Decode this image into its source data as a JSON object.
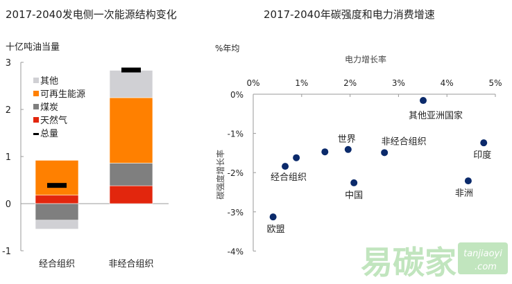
{
  "chart_data": [
    {
      "type": "bar",
      "stacked": true,
      "title": "2017-2040发电侧一次能源结构变化",
      "ylabel": "十亿吨油当量",
      "ylim": [
        -1,
        3
      ],
      "yticks": [
        "3",
        "2",
        "1",
        "0",
        "-1"
      ],
      "ytick_values": [
        3,
        2,
        1,
        0,
        -1
      ],
      "categories": [
        "经合组织",
        "非经合组织"
      ],
      "series": [
        {
          "name": "天然气",
          "color": "#e2260d",
          "values": [
            0.18,
            0.38
          ]
        },
        {
          "name": "煤炭",
          "color": "#7f7f7f",
          "values": [
            -0.35,
            0.48
          ]
        },
        {
          "name": "可再生能源",
          "color": "#ff8000",
          "values": [
            0.74,
            1.39
          ]
        },
        {
          "name": "其他",
          "color": "#d0d0d4",
          "values": [
            -0.19,
            0.58
          ]
        }
      ],
      "total": {
        "name": "总量",
        "color": "#000000",
        "values": [
          0.38,
          2.83
        ]
      },
      "legend": [
        "其他",
        "可再生能源",
        "煤炭",
        "天然气",
        "总量"
      ],
      "legend_position": "top-left"
    },
    {
      "type": "scatter",
      "title": "2017-2040年碳强度和电力消费增速",
      "unit_label": "%年均",
      "xlabel": "电力增长率",
      "ylabel": "碳强度增长率",
      "xlim": [
        0,
        5
      ],
      "ylim": [
        -4,
        0
      ],
      "xticks": [
        "0%",
        "1%",
        "2%",
        "3%",
        "4%",
        "5%"
      ],
      "yticks": [
        "0%",
        "-1%",
        "-2%",
        "-3%",
        "-4%"
      ],
      "point_color": "#0b2a6b",
      "points": [
        {
          "label": "其他亚洲国家",
          "x": 3.51,
          "y": -0.16
        },
        {
          "label": "印度",
          "x": 4.76,
          "y": -1.24
        },
        {
          "label": "非洲",
          "x": 4.44,
          "y": -2.21
        },
        {
          "label": "非经合组织",
          "x": 2.71,
          "y": -1.49
        },
        {
          "label": "世界",
          "x": 1.96,
          "y": -1.41
        },
        {
          "label": "中国",
          "x": 2.08,
          "y": -2.26
        },
        {
          "label": "",
          "x": 1.48,
          "y": -1.47
        },
        {
          "label": "",
          "x": 0.89,
          "y": -1.62
        },
        {
          "label": "经合组织",
          "x": 0.66,
          "y": -1.84
        },
        {
          "label": "欧盟",
          "x": 0.41,
          "y": -3.13
        }
      ]
    }
  ],
  "watermark": {
    "text": "易碳家",
    "site1": "tanjiaoyi",
    "site2": ".com"
  }
}
